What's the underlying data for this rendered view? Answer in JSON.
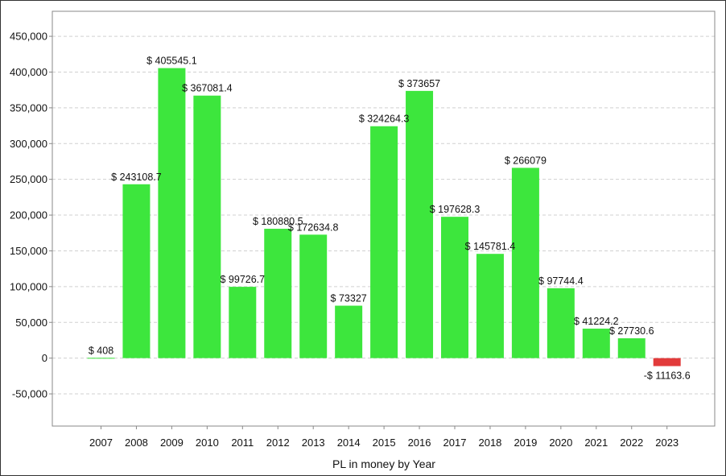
{
  "chart_data": {
    "type": "bar",
    "title": "",
    "xlabel": "PL in money by Year",
    "ylabel": "",
    "categories": [
      "2007",
      "2008",
      "2009",
      "2010",
      "2011",
      "2012",
      "2013",
      "2014",
      "2015",
      "2016",
      "2017",
      "2018",
      "2019",
      "2020",
      "2021",
      "2022",
      "2023"
    ],
    "values": [
      408,
      243108.7,
      405545.1,
      367081.4,
      99726.7,
      180880.5,
      172634.8,
      73327,
      324264.3,
      373657,
      197628.3,
      145781.4,
      266079,
      97744.4,
      41224.2,
      27730.6,
      -11163.6
    ],
    "data_labels": [
      "$ 408",
      "$ 243108.7",
      "$ 405545.1",
      "$ 367081.4",
      "$ 99726.7",
      "$ 180880.5",
      "$ 172634.8",
      "$ 73327",
      "$ 324264.3",
      "$ 373657",
      "$ 197628.3",
      "$ 145781.4",
      "$ 266079",
      "$ 97744.4",
      "$ 41224.2",
      "$ 27730.6",
      "-$ 11163.6"
    ],
    "y_ticks": [
      -50000,
      0,
      50000,
      100000,
      150000,
      200000,
      250000,
      300000,
      350000,
      400000,
      450000
    ],
    "y_tick_labels": [
      "-50,000",
      "0",
      "50,000",
      "100,000",
      "150,000",
      "200,000",
      "250,000",
      "300,000",
      "350,000",
      "400,000",
      "450,000"
    ],
    "ylim": [
      -95000,
      485000
    ],
    "grid": "horizontal dashed",
    "legend": "none",
    "colors": {
      "positive": "#3de63d",
      "negative": "#e23b3b",
      "grid": "#d0d0d0",
      "axis": "#888888"
    }
  }
}
